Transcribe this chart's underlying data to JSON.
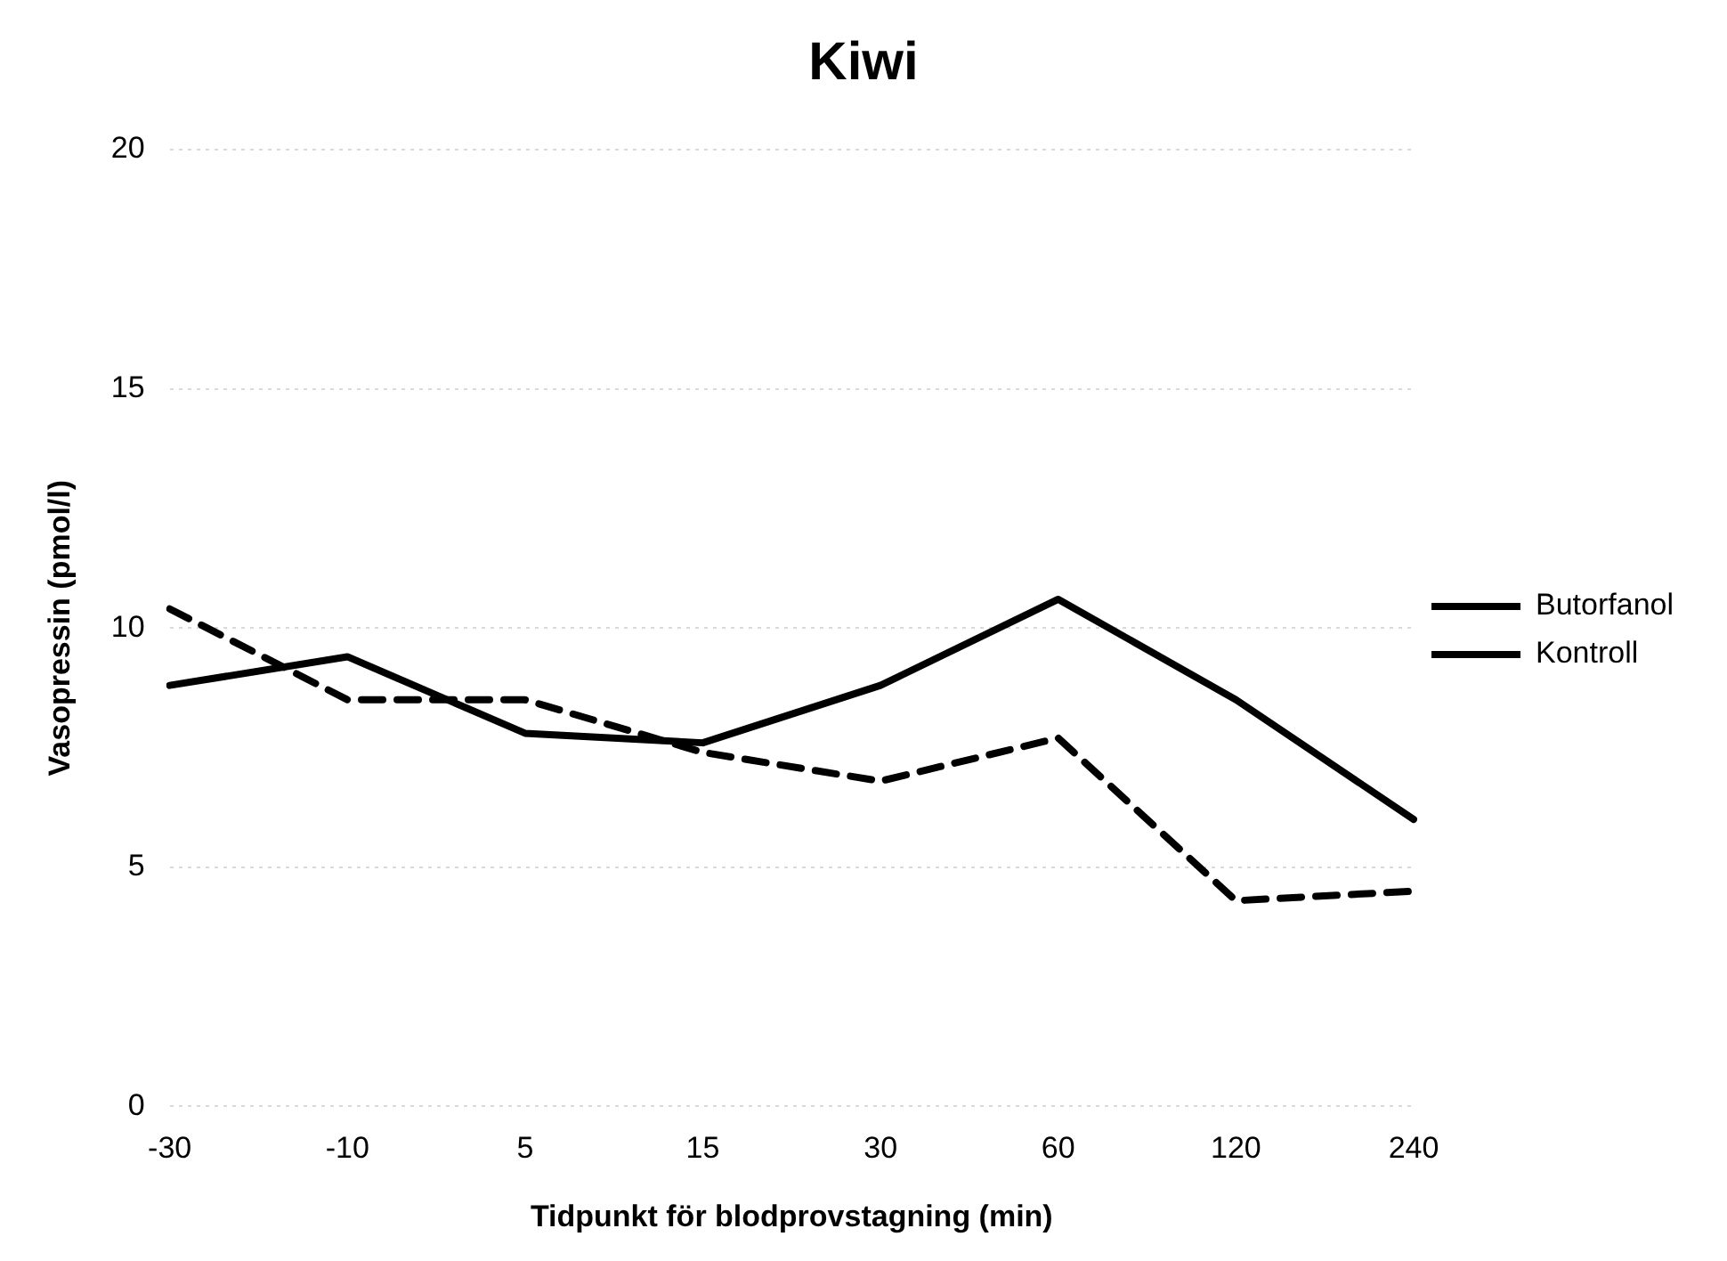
{
  "chart_data": {
    "type": "line",
    "title": "Kiwi",
    "xlabel": "Tidpunkt för blodprovstagning (min)",
    "ylabel": "Vasopressin (pmol/l)",
    "categories": [
      "-30",
      "-10",
      "5",
      "15",
      "30",
      "60",
      "120",
      "240"
    ],
    "series": [
      {
        "name": "Butorfanol",
        "color": "#000000",
        "line_style": "solid",
        "values": [
          8.8,
          9.4,
          7.8,
          7.6,
          8.8,
          10.6,
          8.5,
          6.0
        ]
      },
      {
        "name": "Kontroll",
        "color": "#000000",
        "line_style": "dashed",
        "values": [
          10.4,
          8.5,
          8.5,
          7.4,
          6.8,
          7.7,
          4.3,
          4.5
        ]
      }
    ],
    "ylim": [
      0,
      20
    ],
    "yticks": [
      0,
      5,
      10,
      15,
      20
    ],
    "grid": "y",
    "legend": "right",
    "marker": "none"
  }
}
